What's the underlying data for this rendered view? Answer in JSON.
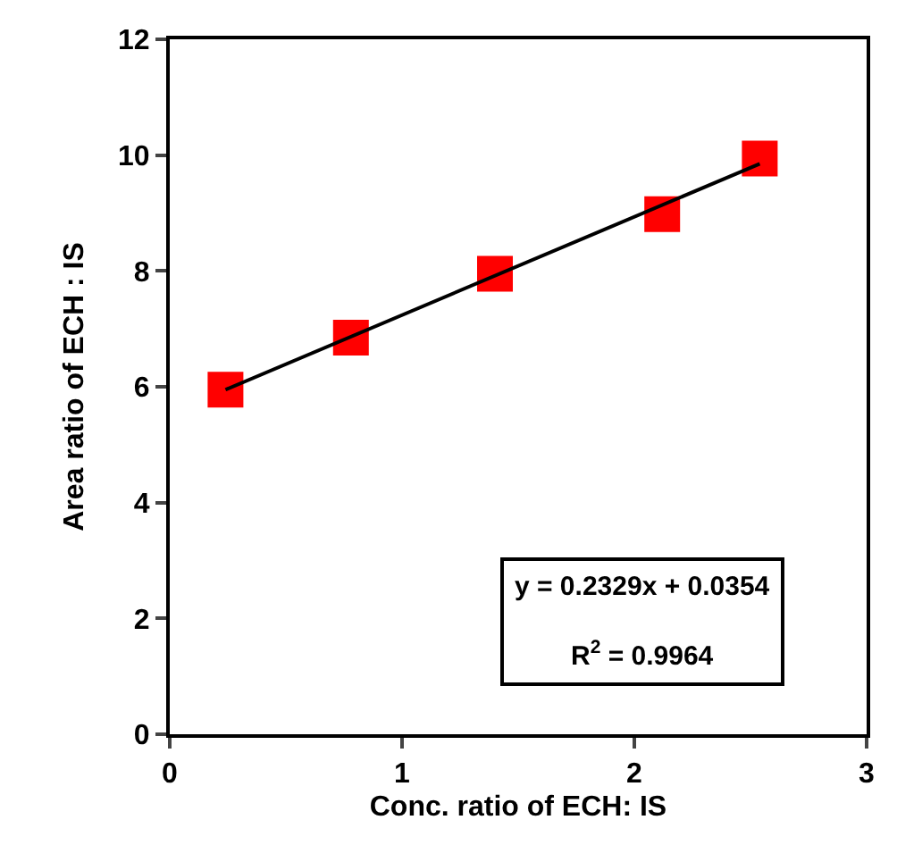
{
  "chart_data": {
    "type": "scatter",
    "xlabel": "Conc. ratio of ECH: IS",
    "ylabel": "Area ratio of ECH : IS",
    "xlim": [
      0,
      3
    ],
    "xticks": [
      0,
      1,
      2,
      3
    ],
    "ylim": [
      0,
      12
    ],
    "yticks": [
      0,
      2,
      4,
      6,
      8,
      10,
      12
    ],
    "marker": "square",
    "series": [
      {
        "color": "#ff0000",
        "x": [
          0.24,
          0.78,
          1.4,
          2.12,
          2.54
        ],
        "values": [
          5.95,
          6.85,
          7.95,
          8.98,
          9.94
        ]
      },
      {
        "type": "line",
        "marker": "none",
        "color": "#000000",
        "x": [
          0.24,
          2.54
        ],
        "values": [
          5.95,
          9.85
        ]
      }
    ],
    "annotations": [
      "y = 0.2329x + 0.0354",
      "R$^{2}$ = 0.9964"
    ]
  }
}
